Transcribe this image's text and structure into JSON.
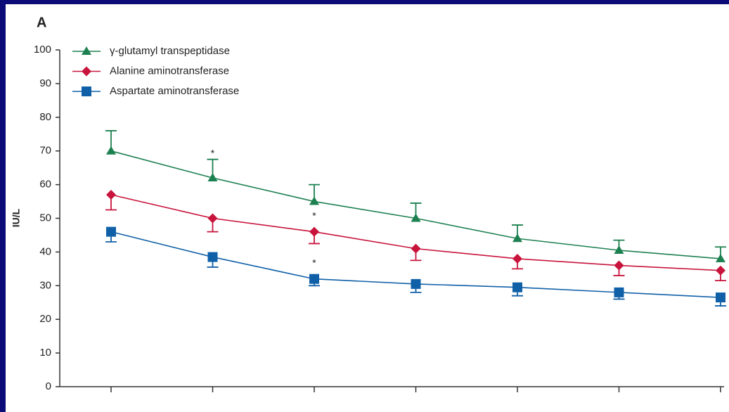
{
  "chart_data": {
    "type": "line",
    "panel_label": "A",
    "y_label": "IU/L",
    "categories": [
      null,
      null,
      null,
      null,
      null,
      null,
      null
    ],
    "ylim": [
      0,
      100
    ],
    "yticks": [
      0,
      10,
      20,
      30,
      40,
      50,
      60,
      70,
      80,
      90,
      100
    ],
    "series": [
      {
        "name": "γ-glutamyl transpeptidase",
        "color": "#1d8050",
        "marker": "triangle",
        "error_side": "up",
        "values": [
          70,
          62,
          55,
          50,
          44,
          40.5,
          38
        ],
        "errors": [
          6,
          5.5,
          5,
          4.5,
          4,
          3,
          3.5
        ],
        "annotations": [
          null,
          "*",
          null,
          null,
          null,
          null,
          null
        ]
      },
      {
        "name": "Alanine aminotransferase",
        "color": "#c8143c",
        "marker": "diamond",
        "error_side": "down",
        "values": [
          57,
          50,
          46,
          41,
          38,
          36,
          34.5
        ],
        "errors": [
          4.5,
          4,
          3.5,
          3.5,
          3,
          3,
          3
        ],
        "annotations": [
          null,
          null,
          "*",
          null,
          null,
          null,
          null
        ]
      },
      {
        "name": "Aspartate aminotransferase",
        "color": "#1060a8",
        "marker": "square",
        "error_side": "down",
        "values": [
          46,
          38.5,
          32,
          30.5,
          29.5,
          28,
          26.5
        ],
        "errors": [
          3,
          3,
          2,
          2.5,
          2.5,
          2,
          2.5
        ],
        "annotations": [
          null,
          null,
          "*",
          null,
          null,
          null,
          null
        ]
      }
    ]
  }
}
